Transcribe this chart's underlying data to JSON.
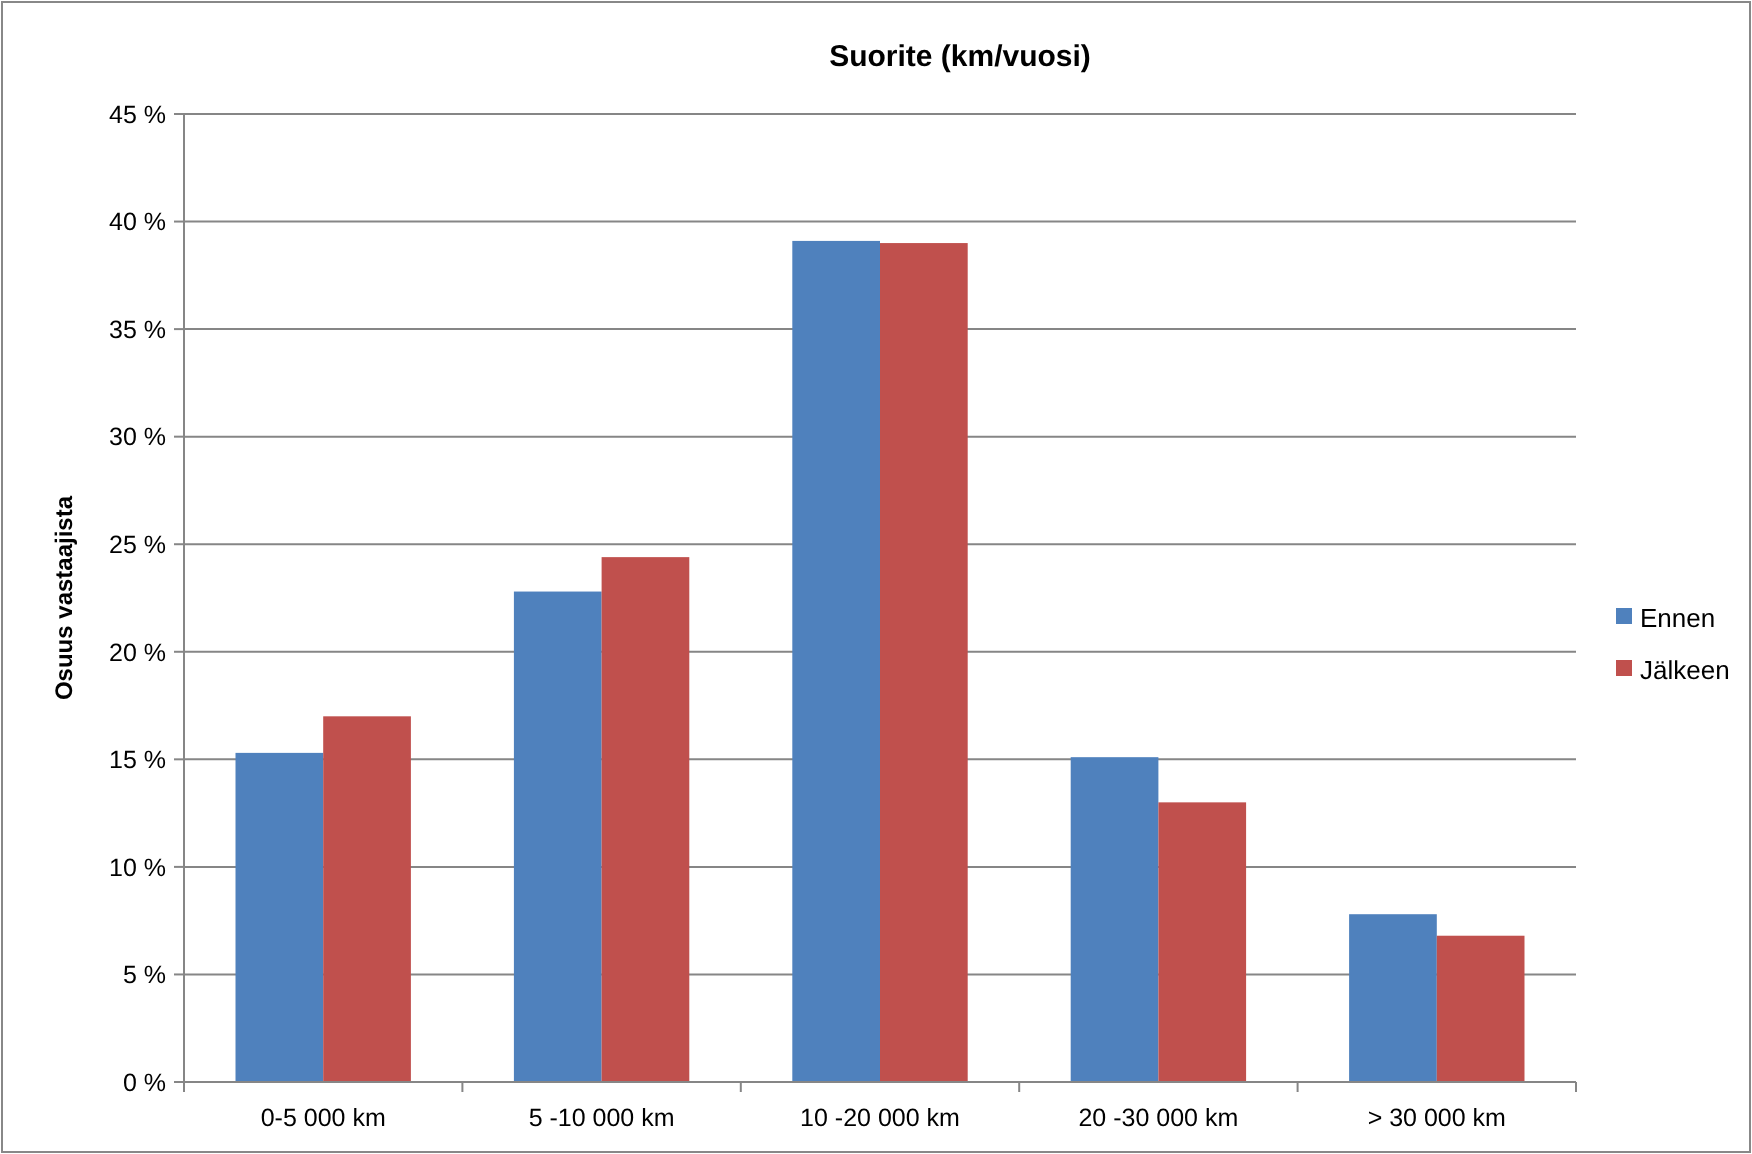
{
  "chart_data": {
    "type": "bar",
    "title": "Suorite (km/vuosi)",
    "ylabel": "Osuus vastaajista",
    "categories": [
      "0-5 000 km",
      "5 -10 000 km",
      "10 -20 000 km",
      "20 -30 000 km",
      "> 30 000 km"
    ],
    "series": [
      {
        "name": "Ennen",
        "color": "#4f81bd",
        "values": [
          15.3,
          22.8,
          39.1,
          15.1,
          7.8
        ]
      },
      {
        "name": "Jälkeen",
        "color": "#c0504d",
        "values": [
          17.0,
          24.4,
          39.0,
          13.0,
          6.8
        ]
      }
    ],
    "ylim": [
      0,
      45
    ],
    "yticks": [
      {
        "value": 0,
        "label": "0 %"
      },
      {
        "value": 5,
        "label": "5 %"
      },
      {
        "value": 10,
        "label": "10 %"
      },
      {
        "value": 15,
        "label": "15 %"
      },
      {
        "value": 20,
        "label": "20 %"
      },
      {
        "value": 25,
        "label": "25 %"
      },
      {
        "value": 30,
        "label": "30 %"
      },
      {
        "value": 35,
        "label": "35 %"
      },
      {
        "value": 40,
        "label": "40 %"
      },
      {
        "value": 45,
        "label": "45 %"
      }
    ],
    "grid": "y",
    "legend": "right"
  }
}
